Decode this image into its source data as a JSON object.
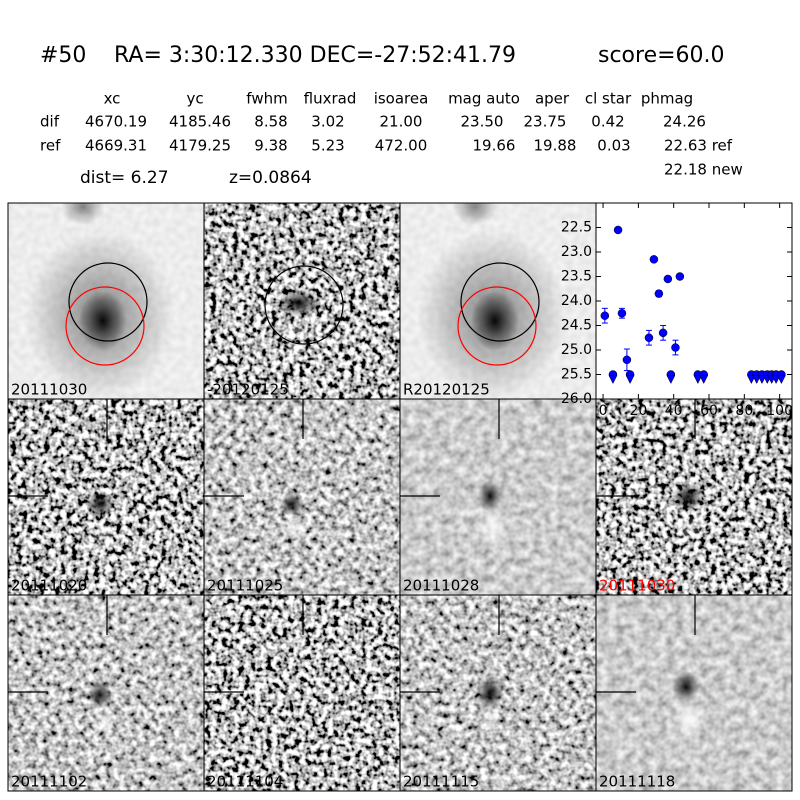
{
  "header": {
    "id": "#50",
    "coords": "RA= 3:30:12.330 DEC=-27:52:41.79",
    "score": "score=60.0"
  },
  "table": {
    "columns": [
      "xc",
      "yc",
      "fwhm",
      "fluxrad",
      "isoarea",
      "mag auto",
      "aper",
      "cl star",
      "phmag"
    ],
    "rows": [
      {
        "label": "dif",
        "cells": [
          "4670.19",
          "4185.46",
          "8.58",
          "3.02",
          "21.00",
          "23.50",
          "23.75",
          "0.42",
          "24.26"
        ]
      },
      {
        "label": "ref",
        "cells": [
          "4669.31",
          "4179.25",
          "9.38",
          "5.23",
          "472.00",
          "19.66",
          "19.88",
          "0.03",
          "22.63 ref"
        ]
      }
    ],
    "new": "22.18 new"
  },
  "dist": "dist=  6.27",
  "z": "z=0.0864",
  "panels": [
    {
      "label": "20111030",
      "color": "#000000"
    },
    {
      "label": "-20120125",
      "color": "#000000"
    },
    {
      "label": "R20120125",
      "color": "#000000"
    },
    {
      "label": "20111020",
      "color": "#000000"
    },
    {
      "label": "20111025",
      "color": "#000000"
    },
    {
      "label": "20111028",
      "color": "#000000"
    },
    {
      "label": "20111030",
      "color": "#ff0000"
    },
    {
      "label": "20111102",
      "color": "#000000"
    },
    {
      "label": "20111104",
      "color": "#000000"
    },
    {
      "label": "20111115",
      "color": "#000000"
    },
    {
      "label": "20111118",
      "color": "#000000"
    }
  ],
  "chart_data": {
    "type": "scatter",
    "xlim": [
      -4,
      107
    ],
    "ylim": [
      22.0,
      26.0
    ],
    "y_inverted": true,
    "xticks": [
      0,
      20,
      40,
      60,
      80,
      100
    ],
    "yticks": [
      22.5,
      {
        "value": 23,
        "label": "23.0"
      },
      23.5,
      {
        "value": 24,
        "label": "24.0"
      },
      24.5,
      {
        "value": 25,
        "label": "25.0"
      },
      25.5,
      {
        "value": 26,
        "label": "26.0"
      }
    ],
    "series": [
      {
        "marker": "circle",
        "color": "#0000ff",
        "x": [
          1,
          8.5,
          10.7,
          13.5,
          26,
          28.8,
          31.6,
          34,
          36.7,
          41,
          43.5
        ],
        "values": [
          24.3,
          22.55,
          24.25,
          25.2,
          24.75,
          23.15,
          23.85,
          24.65,
          23.55,
          24.95,
          23.5
        ],
        "errors": [
          0.15,
          0.05,
          0.1,
          0.22,
          0.15,
          0.05,
          0.06,
          0.15,
          0.05,
          0.15,
          0.05
        ]
      },
      {
        "marker": "triangle",
        "color": "#0000ff",
        "x": [
          5.6,
          15.3,
          38.4,
          53.7,
          57,
          84,
          87,
          90,
          93,
          95.5,
          98,
          101
        ],
        "values": [
          25.5,
          25.5,
          25.5,
          25.5,
          25.5,
          25.5,
          25.5,
          25.5,
          25.5,
          25.5,
          25.5,
          25.5
        ]
      }
    ]
  }
}
